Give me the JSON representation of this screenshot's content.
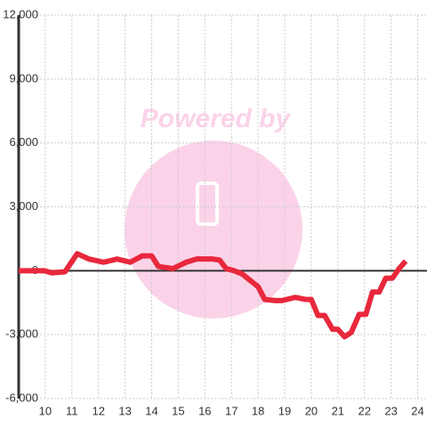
{
  "chart_data": {
    "type": "line",
    "watermark": "Powered by",
    "x": [
      9.0,
      9.97,
      10.24,
      10.74,
      11.2,
      11.64,
      12.2,
      12.7,
      13.2,
      13.65,
      14.0,
      14.25,
      14.8,
      15.3,
      15.7,
      16.3,
      16.55,
      16.8,
      17.1,
      17.4,
      17.65,
      18.0,
      18.25,
      18.65,
      18.9,
      19.4,
      19.8,
      20.0,
      20.25,
      20.5,
      20.8,
      21.0,
      21.25,
      21.5,
      21.8,
      22.05,
      22.3,
      22.55,
      22.8,
      23.05,
      23.3,
      23.55
    ],
    "series": [
      {
        "color": "#e8283c",
        "values": [
          0,
          0,
          -100,
          -50,
          800,
          550,
          400,
          550,
          400,
          700,
          700,
          200,
          100,
          400,
          550,
          550,
          500,
          100,
          0,
          -150,
          -400,
          -750,
          -1350,
          -1400,
          -1400,
          -1250,
          -1350,
          -1350,
          -2100,
          -2100,
          -2750,
          -2750,
          -3100,
          -2900,
          -2050,
          -2050,
          -1000,
          -1000,
          -350,
          -350,
          100,
          450
        ]
      }
    ],
    "xlim": [
      9,
      24.35
    ],
    "xticks": [
      10,
      11,
      12,
      13,
      14,
      15,
      16,
      17,
      18,
      19,
      20,
      21,
      22,
      23,
      24
    ],
    "ylim": [
      -6000,
      12000
    ],
    "yticks": [
      {
        "value": -6000,
        "label": "-6,000"
      },
      {
        "value": -3000,
        "label": "-3,000"
      },
      0,
      {
        "value": 3000,
        "label": "3,000"
      },
      {
        "value": 6000,
        "label": "6,000"
      },
      {
        "value": 9000,
        "label": "9,000"
      },
      {
        "value": 12000,
        "label": "12,000"
      }
    ],
    "grid": true
  }
}
